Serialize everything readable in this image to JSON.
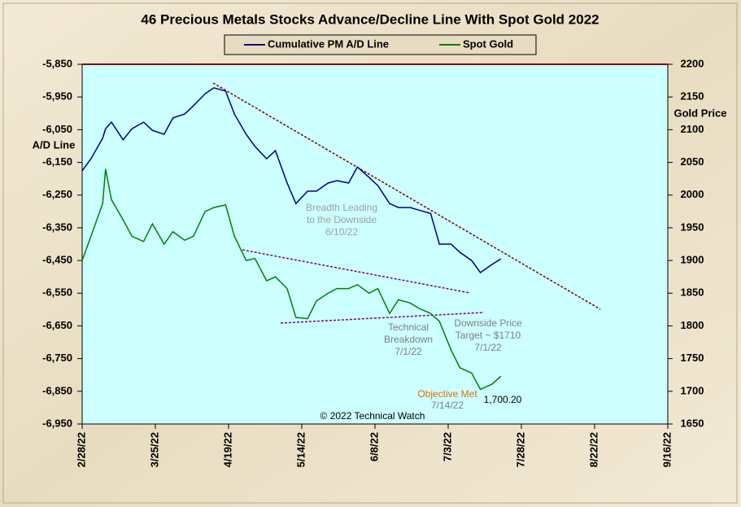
{
  "chart_data": {
    "type": "line",
    "title": "46 Precious Metals Stocks Advance/Decline Line With Spot Gold 2022",
    "ylabel": "A/D Line",
    "y2label": "Gold Price",
    "x": [
      "2022-02-28",
      "2022-03-03",
      "2022-03-07",
      "2022-03-08",
      "2022-03-10",
      "2022-03-14",
      "2022-03-17",
      "2022-03-21",
      "2022-03-24",
      "2022-03-28",
      "2022-03-31",
      "2022-04-04",
      "2022-04-07",
      "2022-04-11",
      "2022-04-14",
      "2022-04-18",
      "2022-04-21",
      "2022-04-25",
      "2022-04-28",
      "2022-05-02",
      "2022-05-05",
      "2022-05-09",
      "2022-05-12",
      "2022-05-16",
      "2022-05-19",
      "2022-05-23",
      "2022-05-26",
      "2022-05-30",
      "2022-06-02",
      "2022-06-06",
      "2022-06-09",
      "2022-06-13",
      "2022-06-16",
      "2022-06-20",
      "2022-06-23",
      "2022-06-27",
      "2022-06-30",
      "2022-07-04",
      "2022-07-07",
      "2022-07-11",
      "2022-07-14",
      "2022-07-18",
      "2022-07-21"
    ],
    "series": [
      {
        "name": "Cumulative PM A/D Line",
        "color": "#000080",
        "values": [
          -6176,
          -6139,
          -6076,
          -6047,
          -6027,
          -6081,
          -6047,
          -6027,
          -6052,
          -6064,
          -6014,
          -6002,
          -5977,
          -5940,
          -5922,
          -5932,
          -6002,
          -6064,
          -6101,
          -6139,
          -6114,
          -6213,
          -6276,
          -6238,
          -6238,
          -6213,
          -6206,
          -6213,
          -6164,
          -6196,
          -6221,
          -6276,
          -6288,
          -6288,
          -6296,
          -6306,
          -6400,
          -6400,
          -6425,
          -6450,
          -6487,
          -6462,
          -6445
        ]
      },
      {
        "name": "Spot Gold",
        "color": "#008000",
        "axis": "y2",
        "values": [
          1900,
          1937,
          1987,
          2040,
          1993,
          1962,
          1937,
          1929,
          1956,
          1925,
          1944,
          1931,
          1937,
          1975,
          1981,
          1985,
          1937,
          1900,
          1903,
          1869,
          1875,
          1857,
          1813,
          1811,
          1838,
          1850,
          1857,
          1857,
          1863,
          1850,
          1857,
          1819,
          1840,
          1835,
          1827,
          1819,
          1807,
          1763,
          1736,
          1728,
          1703,
          1711,
          1723
        ]
      }
    ],
    "xlim": [
      "2022-02-28",
      "2022-09-16"
    ],
    "xticks": [
      {
        "value": "2022-02-28",
        "label": "2/28/22"
      },
      {
        "value": "2022-03-25",
        "label": "3/25/22"
      },
      {
        "value": "2022-04-19",
        "label": "4/19/22"
      },
      {
        "value": "2022-05-14",
        "label": "5/14/22"
      },
      {
        "value": "2022-06-08",
        "label": "6/8/22"
      },
      {
        "value": "2022-07-03",
        "label": "7/3/22"
      },
      {
        "value": "2022-07-28",
        "label": "7/28/22"
      },
      {
        "value": "2022-08-22",
        "label": "8/22/22"
      },
      {
        "value": "2022-09-16",
        "label": "9/16/22"
      }
    ],
    "ylim": [
      -6950,
      -5850
    ],
    "yticks": [
      {
        "value": -6950,
        "label": "-6,950"
      },
      {
        "value": -6850,
        "label": "-6,850"
      },
      {
        "value": -6750,
        "label": "-6,750"
      },
      {
        "value": -6650,
        "label": "-6,650"
      },
      {
        "value": -6550,
        "label": "-6,550"
      },
      {
        "value": -6450,
        "label": "-6,450"
      },
      {
        "value": -6350,
        "label": "-6,350"
      },
      {
        "value": -6250,
        "label": "-6,250"
      },
      {
        "value": -6150,
        "label": "-6,150"
      },
      {
        "value": -6050,
        "label": "-6,050"
      },
      {
        "value": -5950,
        "label": "-5,950"
      },
      {
        "value": -5850,
        "label": "-5,850"
      }
    ],
    "y2lim": [
      1650,
      2200
    ],
    "y2ticks": [
      1650,
      1700,
      1750,
      1800,
      1850,
      1900,
      1950,
      2000,
      2050,
      2100,
      2150,
      2200
    ],
    "annotations": [
      {
        "lines": [
          "Breadth Leading",
          "to the Downside",
          "6/10/22"
        ],
        "color": "#a0a0a0"
      },
      {
        "lines": [
          "Technical",
          "Breakdown",
          "7/1/22"
        ],
        "color": "#808080"
      },
      {
        "lines": [
          "Downside Price",
          "Target ~ $1710",
          "7/1/22"
        ],
        "color": "#808080"
      },
      {
        "lines": [
          "Objective Met"
        ],
        "color": "#e07000"
      },
      {
        "lines": [
          "7/14/22"
        ],
        "color": "#808080"
      },
      {
        "lines": [
          "1,700.20"
        ],
        "color": "#000000"
      },
      {
        "lines": [
          "© 2022 Technical Watch"
        ],
        "color": "#000000"
      }
    ]
  }
}
